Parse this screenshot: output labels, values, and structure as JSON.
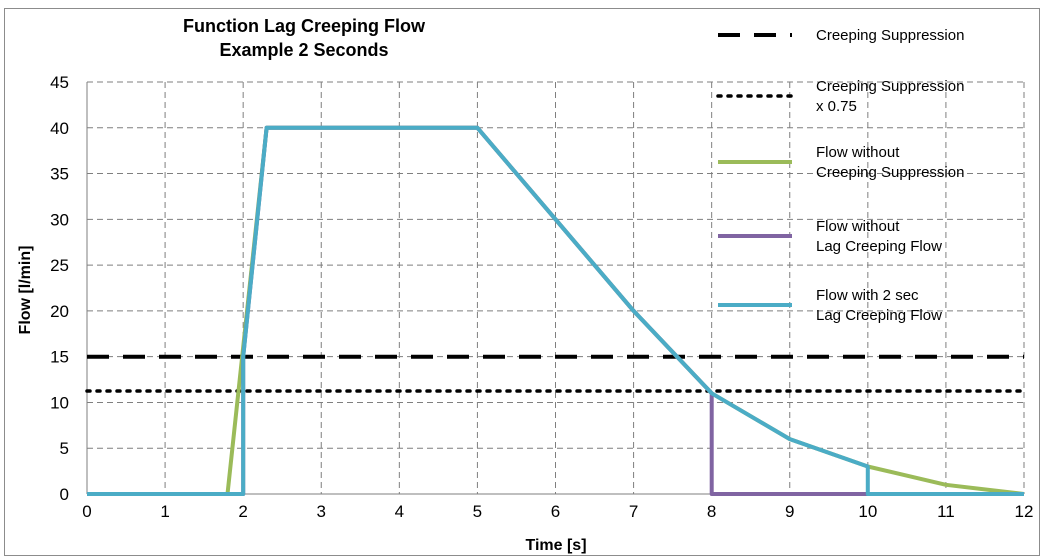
{
  "chart_data": {
    "type": "line",
    "title": [
      "Function Lag Creeping Flow",
      "Example 2 Seconds"
    ],
    "xlabel": "Time [s]",
    "ylabel": "Flow [l/min]",
    "xlim": [
      0,
      12
    ],
    "ylim": [
      0,
      45
    ],
    "x_ticks": [
      0,
      1,
      2,
      3,
      4,
      5,
      6,
      7,
      8,
      9,
      10,
      11,
      12
    ],
    "y_ticks": [
      0,
      5,
      10,
      15,
      20,
      25,
      30,
      35,
      40,
      45
    ],
    "grid": true,
    "legend_placement": "right",
    "series": [
      {
        "name": [
          "Creeping Suppression"
        ],
        "color": "#000000",
        "style": "dashed",
        "points": [
          [
            0,
            15
          ],
          [
            12,
            15
          ]
        ]
      },
      {
        "name": [
          "Creeping Suppression",
          "x 0.75"
        ],
        "color": "#000000",
        "style": "dotted",
        "points": [
          [
            0,
            11.25
          ],
          [
            12,
            11.25
          ]
        ]
      },
      {
        "name": [
          "Flow without",
          "Creeping Suppression"
        ],
        "color": "#9bbb59",
        "style": "solid",
        "points": [
          [
            0,
            0
          ],
          [
            1.8,
            0
          ],
          [
            2.3,
            40
          ],
          [
            5,
            40
          ],
          [
            6,
            30
          ],
          [
            7,
            20
          ],
          [
            8,
            11
          ],
          [
            9,
            6
          ],
          [
            10,
            3
          ],
          [
            11,
            1
          ],
          [
            12,
            0
          ]
        ]
      },
      {
        "name": [
          "Flow without",
          "Lag Creeping Flow"
        ],
        "color": "#8064a2",
        "style": "solid",
        "points": [
          [
            0,
            0
          ],
          [
            2,
            0
          ],
          [
            2,
            15
          ],
          [
            2.3,
            40
          ],
          [
            5,
            40
          ],
          [
            6,
            30
          ],
          [
            7,
            20
          ],
          [
            8,
            11
          ],
          [
            8,
            0
          ],
          [
            10,
            0
          ]
        ]
      },
      {
        "name": [
          "Flow with 2 sec",
          "Lag Creeping Flow"
        ],
        "color": "#4bacc6",
        "style": "solid",
        "points": [
          [
            0,
            0
          ],
          [
            2,
            0
          ],
          [
            2,
            15
          ],
          [
            2.3,
            40
          ],
          [
            5,
            40
          ],
          [
            6,
            30
          ],
          [
            7,
            20
          ],
          [
            8,
            11
          ],
          [
            9,
            6
          ],
          [
            10,
            3
          ],
          [
            10,
            0
          ],
          [
            12,
            0
          ]
        ]
      }
    ]
  }
}
